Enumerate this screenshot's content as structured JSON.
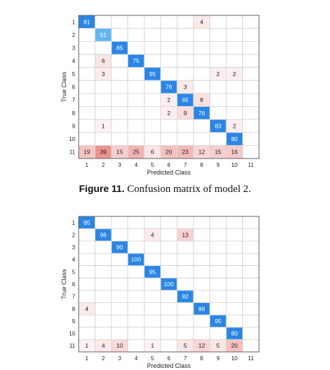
{
  "figure_caption": {
    "label": "Figure 11.",
    "text": "Confusion matrix of model 2."
  },
  "colors": {
    "diagonal": "#2a86e6",
    "diagonal_light": "#62b5f0",
    "off_diagonal": "#e55555",
    "grid": "#cccccc",
    "border": "#444444"
  },
  "chart_data": [
    {
      "type": "heatmap",
      "title": "",
      "xlabel": "Predicted Class",
      "ylabel": "True Class",
      "x_ticks": [
        "1",
        "2",
        "3",
        "4",
        "5",
        "6",
        "7",
        "8",
        "9",
        "10",
        "11"
      ],
      "y_ticks": [
        "1",
        "2",
        "3",
        "4",
        "5",
        "6",
        "7",
        "8",
        "9",
        "10",
        "11"
      ],
      "cells": [
        {
          "true": 1,
          "pred": 1,
          "value": 81
        },
        {
          "true": 1,
          "pred": 8,
          "value": 4
        },
        {
          "true": 2,
          "pred": 2,
          "value": 51
        },
        {
          "true": 3,
          "pred": 3,
          "value": 85
        },
        {
          "true": 4,
          "pred": 2,
          "value": 6
        },
        {
          "true": 4,
          "pred": 4,
          "value": 75
        },
        {
          "true": 5,
          "pred": 2,
          "value": 3
        },
        {
          "true": 5,
          "pred": 5,
          "value": 95
        },
        {
          "true": 5,
          "pred": 9,
          "value": 2
        },
        {
          "true": 5,
          "pred": 10,
          "value": 2
        },
        {
          "true": 6,
          "pred": 6,
          "value": 76
        },
        {
          "true": 6,
          "pred": 7,
          "value": 3
        },
        {
          "true": 7,
          "pred": 6,
          "value": 2
        },
        {
          "true": 7,
          "pred": 7,
          "value": 65
        },
        {
          "true": 7,
          "pred": 8,
          "value": 8
        },
        {
          "true": 8,
          "pred": 6,
          "value": 2
        },
        {
          "true": 8,
          "pred": 7,
          "value": 9
        },
        {
          "true": 8,
          "pred": 8,
          "value": 76
        },
        {
          "true": 9,
          "pred": 2,
          "value": 1
        },
        {
          "true": 9,
          "pred": 9,
          "value": 83
        },
        {
          "true": 9,
          "pred": 10,
          "value": 2
        },
        {
          "true": 10,
          "pred": 10,
          "value": 80
        },
        {
          "true": 11,
          "pred": 1,
          "value": 19
        },
        {
          "true": 11,
          "pred": 2,
          "value": 39
        },
        {
          "true": 11,
          "pred": 3,
          "value": 15
        },
        {
          "true": 11,
          "pred": 4,
          "value": 25
        },
        {
          "true": 11,
          "pred": 5,
          "value": 6
        },
        {
          "true": 11,
          "pred": 6,
          "value": 20
        },
        {
          "true": 11,
          "pred": 7,
          "value": 23
        },
        {
          "true": 11,
          "pred": 8,
          "value": 12
        },
        {
          "true": 11,
          "pred": 9,
          "value": 15
        },
        {
          "true": 11,
          "pred": 10,
          "value": 16
        }
      ]
    },
    {
      "type": "heatmap",
      "title": "",
      "xlabel": "Predicted Class",
      "ylabel": "True Class",
      "x_ticks": [
        "1",
        "2",
        "3",
        "4",
        "5",
        "6",
        "7",
        "8",
        "9",
        "10",
        "11"
      ],
      "y_ticks": [
        "1",
        "2",
        "3",
        "4",
        "5",
        "6",
        "7",
        "8",
        "9",
        "10",
        "11"
      ],
      "cells": [
        {
          "true": 1,
          "pred": 1,
          "value": 95
        },
        {
          "true": 2,
          "pred": 2,
          "value": 96
        },
        {
          "true": 2,
          "pred": 5,
          "value": 4
        },
        {
          "true": 2,
          "pred": 7,
          "value": 13
        },
        {
          "true": 3,
          "pred": 3,
          "value": 90
        },
        {
          "true": 4,
          "pred": 4,
          "value": 100
        },
        {
          "true": 5,
          "pred": 5,
          "value": 95
        },
        {
          "true": 6,
          "pred": 6,
          "value": 100
        },
        {
          "true": 7,
          "pred": 7,
          "value": 82
        },
        {
          "true": 8,
          "pred": 1,
          "value": 4
        },
        {
          "true": 8,
          "pred": 8,
          "value": 88
        },
        {
          "true": 9,
          "pred": 9,
          "value": 95
        },
        {
          "true": 10,
          "pred": 10,
          "value": 80
        },
        {
          "true": 11,
          "pred": 1,
          "value": 1
        },
        {
          "true": 11,
          "pred": 2,
          "value": 4
        },
        {
          "true": 11,
          "pred": 3,
          "value": 10
        },
        {
          "true": 11,
          "pred": 5,
          "value": 1
        },
        {
          "true": 11,
          "pred": 7,
          "value": 5
        },
        {
          "true": 11,
          "pred": 8,
          "value": 12
        },
        {
          "true": 11,
          "pred": 9,
          "value": 5
        },
        {
          "true": 11,
          "pred": 10,
          "value": 20
        }
      ]
    }
  ]
}
